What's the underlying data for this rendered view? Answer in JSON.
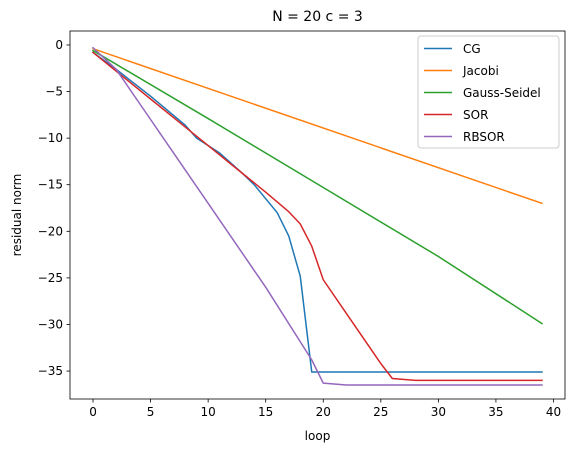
{
  "chart_data": {
    "type": "line",
    "title": "N = 20 c = 3",
    "xlabel": "loop",
    "ylabel": "residual norm",
    "xlim": [
      -2,
      41
    ],
    "ylim": [
      -38,
      1.5
    ],
    "xticks": [
      0,
      5,
      10,
      15,
      20,
      25,
      30,
      35,
      40
    ],
    "yticks": [
      0,
      -5,
      -10,
      -15,
      -20,
      -25,
      -30,
      -35
    ],
    "grid": false,
    "legend_position": "top-right",
    "series": [
      {
        "name": "CG",
        "color": "#1f77b4",
        "points": [
          [
            0,
            -0.8
          ],
          [
            2,
            -2.6
          ],
          [
            5,
            -5.5
          ],
          [
            8,
            -8.6
          ],
          [
            9,
            -10.0
          ],
          [
            11,
            -11.6
          ],
          [
            13,
            -13.8
          ],
          [
            14,
            -15.0
          ],
          [
            16,
            -18.0
          ],
          [
            17,
            -20.5
          ],
          [
            18,
            -24.8
          ],
          [
            19,
            -35.1
          ],
          [
            20,
            -35.1
          ],
          [
            39,
            -35.1
          ]
        ]
      },
      {
        "name": "Jacobi",
        "color": "#ff7f0e",
        "points": [
          [
            0,
            -0.4
          ],
          [
            39,
            -17.0
          ]
        ]
      },
      {
        "name": "Gauss-Seidel",
        "color": "#2ca02c",
        "points": [
          [
            0,
            -0.6
          ],
          [
            10,
            -7.9
          ],
          [
            20,
            -15.3
          ],
          [
            30,
            -22.7
          ],
          [
            39,
            -29.9
          ]
        ]
      },
      {
        "name": "SOR",
        "color": "#d62728",
        "points": [
          [
            0,
            -0.8
          ],
          [
            2,
            -2.8
          ],
          [
            5,
            -5.8
          ],
          [
            8,
            -8.8
          ],
          [
            10,
            -10.8
          ],
          [
            12,
            -12.8
          ],
          [
            15,
            -15.8
          ],
          [
            17,
            -17.9
          ],
          [
            18,
            -19.2
          ],
          [
            19,
            -21.6
          ],
          [
            20,
            -25.2
          ],
          [
            22,
            -28.8
          ],
          [
            25,
            -34.2
          ],
          [
            26,
            -35.8
          ],
          [
            28,
            -36.0
          ],
          [
            39,
            -36.0
          ]
        ]
      },
      {
        "name": "RBSOR",
        "color": "#9467bd",
        "points": [
          [
            0,
            -0.3
          ],
          [
            2,
            -2.6
          ],
          [
            5,
            -8.0
          ],
          [
            10,
            -17.0
          ],
          [
            15,
            -26.0
          ],
          [
            19,
            -33.8
          ],
          [
            20,
            -36.3
          ],
          [
            22,
            -36.5
          ],
          [
            39,
            -36.5
          ]
        ]
      }
    ]
  }
}
